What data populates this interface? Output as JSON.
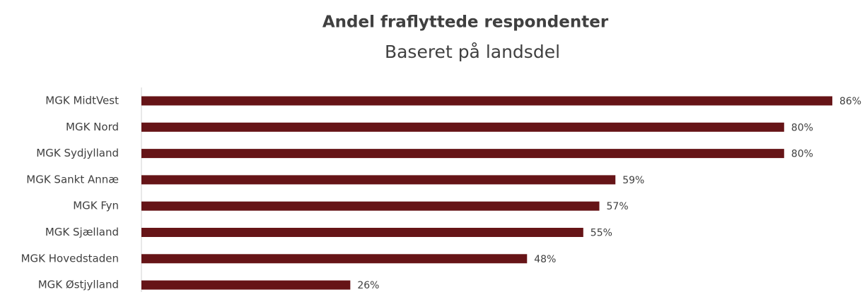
{
  "chart_data": {
    "type": "bar",
    "orientation": "horizontal",
    "title": "Andel fraflyttede respondenter",
    "subtitle": "Baseret på landsdel",
    "categories": [
      "MGK MidtVest",
      "MGK Nord",
      "MGK Sydjylland",
      "MGK Sankt Annæ",
      "MGK Fyn",
      "MGK Sjælland",
      "MGK Hovedstaden",
      "MGK Østjylland"
    ],
    "values": [
      86,
      80,
      80,
      59,
      57,
      55,
      48,
      26
    ],
    "value_labels": [
      "86%",
      "80%",
      "80%",
      "59%",
      "57%",
      "55%",
      "48%",
      "26%"
    ],
    "color": "#661417"
  }
}
